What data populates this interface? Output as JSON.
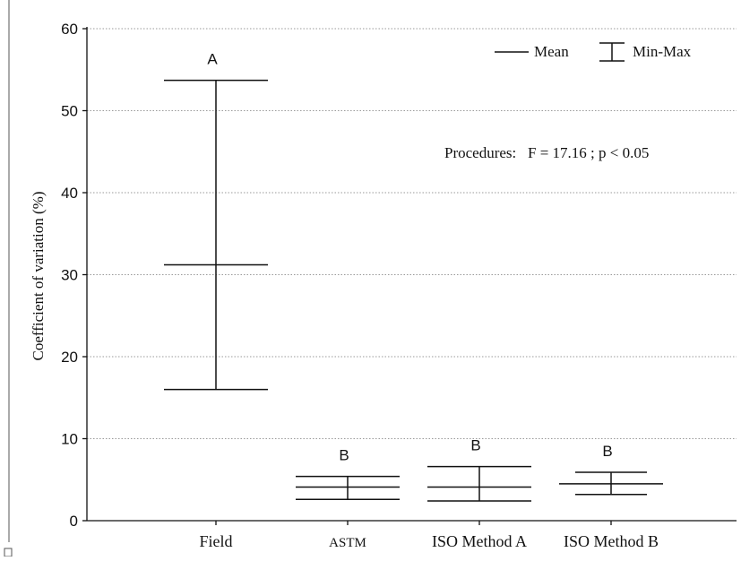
{
  "chart_data": {
    "type": "box",
    "ylabel": "Coefficient of variation (%)",
    "ylim": [
      0,
      60
    ],
    "yticks": [
      0,
      10,
      20,
      30,
      40,
      50,
      60
    ],
    "grid": true,
    "legend_placement": "top-right",
    "legend": {
      "mean_label": "Mean",
      "range_label": "Min-Max"
    },
    "annotation": "Procedures:   F = 17.16 ; p < 0.05",
    "categories": [
      "Field",
      "ASTM",
      "ISO Method A",
      "ISO Method B"
    ],
    "series": [
      {
        "category": "Field",
        "mean": 31.2,
        "min": 16.0,
        "max": 53.7,
        "group": "A"
      },
      {
        "category": "ASTM",
        "mean": 4.1,
        "min": 2.6,
        "max": 5.4,
        "group": "B"
      },
      {
        "category": "ISO Method A",
        "mean": 4.1,
        "min": 2.4,
        "max": 6.6,
        "group": "B"
      },
      {
        "category": "ISO Method B",
        "mean": 4.5,
        "min": 3.2,
        "max": 5.9,
        "group": "B"
      }
    ]
  }
}
